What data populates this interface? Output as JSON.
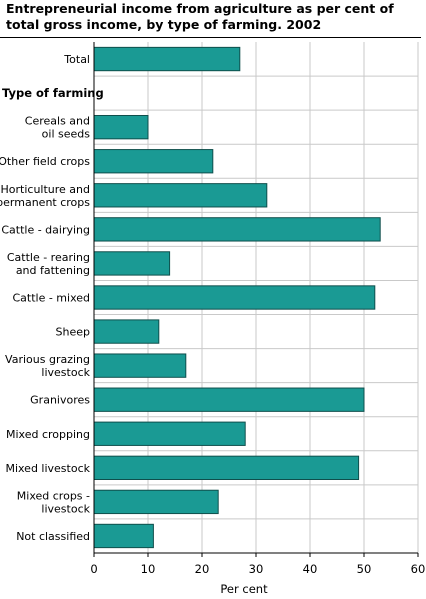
{
  "chart_data": {
    "type": "bar",
    "orientation": "horizontal",
    "title": "Entrepreneurial income from agriculture as per cent of total gross income, by type of farming.  2002",
    "xlabel": "Per cent",
    "ylabel": "",
    "xlim": [
      0,
      60
    ],
    "ticks": [
      0,
      10,
      20,
      30,
      40,
      50,
      60
    ],
    "grid": true,
    "bar_color": "#1a9a94",
    "bar_stroke": "#0f4f4c",
    "rows": [
      {
        "label": [
          "Total"
        ],
        "value": 27,
        "kind": "bar"
      },
      {
        "label": [
          "Type of farming"
        ],
        "value": null,
        "kind": "heading"
      },
      {
        "label": [
          "Cereals and",
          "oil seeds"
        ],
        "value": 10,
        "kind": "bar"
      },
      {
        "label": [
          "Other field crops"
        ],
        "value": 22,
        "kind": "bar"
      },
      {
        "label": [
          "Horticulture and",
          "permanent crops"
        ],
        "value": 32,
        "kind": "bar"
      },
      {
        "label": [
          "Cattle - dairying"
        ],
        "value": 53,
        "kind": "bar"
      },
      {
        "label": [
          "Cattle - rearing",
          "and fattening"
        ],
        "value": 14,
        "kind": "bar"
      },
      {
        "label": [
          "Cattle - mixed"
        ],
        "value": 52,
        "kind": "bar"
      },
      {
        "label": [
          "Sheep"
        ],
        "value": 12,
        "kind": "bar"
      },
      {
        "label": [
          "Various grazing",
          "livestock"
        ],
        "value": 17,
        "kind": "bar"
      },
      {
        "label": [
          "Granivores"
        ],
        "value": 50,
        "kind": "bar"
      },
      {
        "label": [
          "Mixed cropping"
        ],
        "value": 28,
        "kind": "bar"
      },
      {
        "label": [
          "Mixed livestock"
        ],
        "value": 49,
        "kind": "bar"
      },
      {
        "label": [
          "Mixed crops -",
          "livestock"
        ],
        "value": 23,
        "kind": "bar"
      },
      {
        "label": [
          "Not classified"
        ],
        "value": 11,
        "kind": "bar"
      }
    ]
  }
}
